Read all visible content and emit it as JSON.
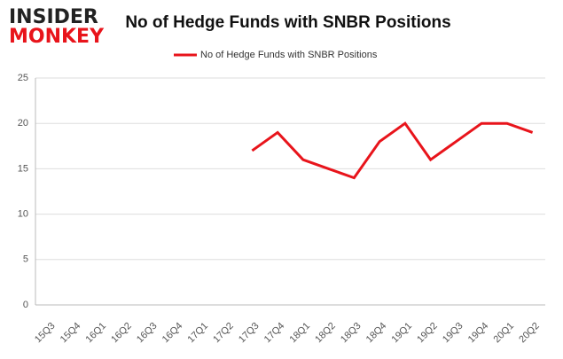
{
  "logo": {
    "line1": "INSIDER",
    "line2": "MONKEY"
  },
  "chart_data": {
    "type": "line",
    "title": "No of Hedge Funds with SNBR Positions",
    "categories": [
      "15Q3",
      "15Q4",
      "16Q1",
      "16Q2",
      "16Q3",
      "16Q4",
      "17Q1",
      "17Q2",
      "17Q3",
      "17Q4",
      "18Q1",
      "18Q2",
      "18Q3",
      "18Q4",
      "19Q1",
      "19Q2",
      "19Q3",
      "19Q4",
      "20Q1",
      "20Q2"
    ],
    "series": [
      {
        "name": "No of Hedge Funds with SNBR Positions",
        "color": "#e8141b",
        "values": [
          null,
          null,
          null,
          null,
          null,
          null,
          null,
          null,
          17,
          19,
          16,
          15,
          14,
          18,
          20,
          16,
          18,
          20,
          20,
          19
        ]
      }
    ],
    "ylim": [
      0,
      25
    ],
    "yticks": [
      0,
      5,
      10,
      15,
      20,
      25
    ],
    "grid": true,
    "legend": "top"
  }
}
